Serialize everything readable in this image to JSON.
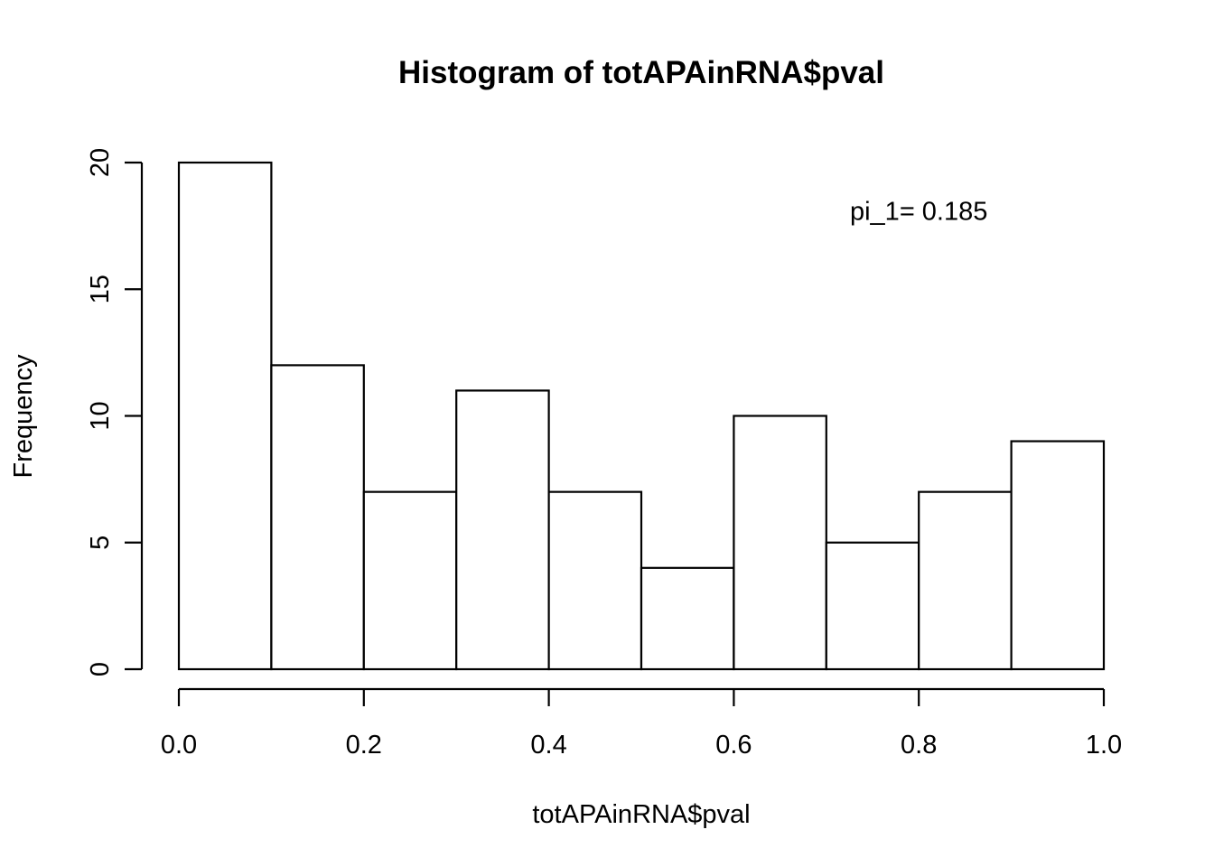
{
  "chart_data": {
    "type": "bar",
    "title": "Histogram of totAPAinRNA$pval",
    "xlabel": "totAPAinRNA$pval",
    "ylabel": "Frequency",
    "bins": [
      {
        "start": 0.0,
        "end": 0.1,
        "count": 20
      },
      {
        "start": 0.1,
        "end": 0.2,
        "count": 12
      },
      {
        "start": 0.2,
        "end": 0.3,
        "count": 7
      },
      {
        "start": 0.3,
        "end": 0.4,
        "count": 11
      },
      {
        "start": 0.4,
        "end": 0.5,
        "count": 7
      },
      {
        "start": 0.5,
        "end": 0.6,
        "count": 4
      },
      {
        "start": 0.6,
        "end": 0.7,
        "count": 10
      },
      {
        "start": 0.7,
        "end": 0.8,
        "count": 5
      },
      {
        "start": 0.8,
        "end": 0.9,
        "count": 7
      },
      {
        "start": 0.9,
        "end": 1.0,
        "count": 9
      }
    ],
    "xlim": [
      0.0,
      1.0
    ],
    "ylim": [
      0,
      20
    ],
    "x_ticks": [
      {
        "value": 0.0,
        "label": "0.0"
      },
      {
        "value": 0.2,
        "label": "0.2"
      },
      {
        "value": 0.4,
        "label": "0.4"
      },
      {
        "value": 0.6,
        "label": "0.6"
      },
      {
        "value": 0.8,
        "label": "0.8"
      },
      {
        "value": 1.0,
        "label": "1.0"
      }
    ],
    "y_ticks": [
      {
        "value": 0,
        "label": "0"
      },
      {
        "value": 5,
        "label": "5"
      },
      {
        "value": 10,
        "label": "10"
      },
      {
        "value": 15,
        "label": "15"
      },
      {
        "value": 20,
        "label": "20"
      }
    ],
    "annotations": [
      {
        "text": "pi_1= 0.185",
        "x": 0.8,
        "y": 18.1
      }
    ],
    "grid": false
  }
}
